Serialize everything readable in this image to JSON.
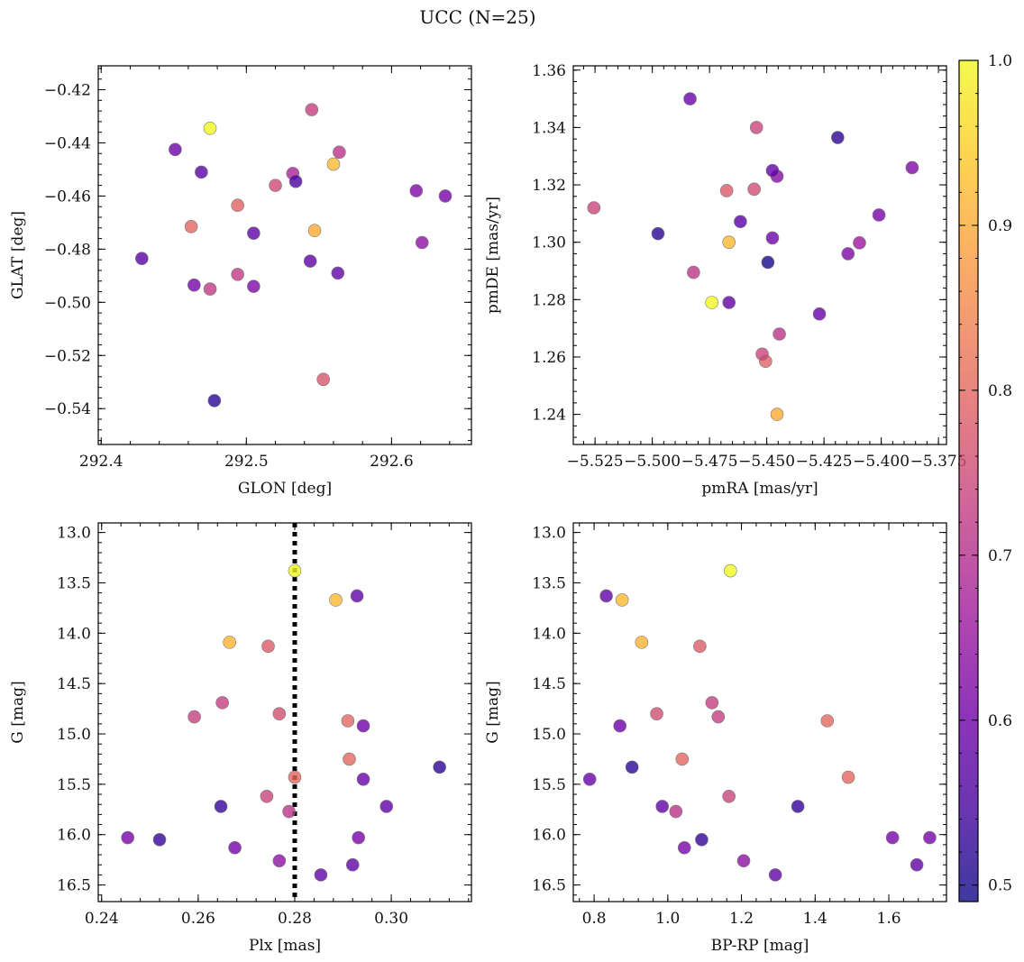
{
  "title": "UCC (N=25)",
  "colorbar": {
    "cmap": [
      "#0d0887",
      "#46039f",
      "#7201a8",
      "#9c179e",
      "#bd3786",
      "#d8576b",
      "#ed7953",
      "#fb9f3a",
      "#fdca26",
      "#f0f921"
    ],
    "vmin": 0.49,
    "vmax": 1.0,
    "ticks": [
      0.5,
      0.6,
      0.7,
      0.8,
      0.9,
      1.0
    ],
    "tick_labels": [
      "0.5",
      "0.6",
      "0.7",
      "0.8",
      "0.9",
      "1.0"
    ],
    "alpha": 0.8
  },
  "chart_data": [
    {
      "id": "glon-glat",
      "type": "scatter",
      "xlabel": "GLON [deg]",
      "ylabel": "GLAT [deg]",
      "xlim": [
        292.398,
        292.655
      ],
      "ylim": [
        -0.5535,
        -0.411
      ],
      "y_inverted": false,
      "xticks": [
        292.4,
        292.5,
        292.6
      ],
      "xtick_labels": [
        "292.4",
        "292.5",
        "292.6"
      ],
      "yticks": [
        -0.42,
        -0.44,
        -0.46,
        -0.48,
        -0.5,
        -0.52,
        -0.54
      ],
      "ytick_labels": [
        "−0.42",
        "−0.44",
        "−0.46",
        "−0.48",
        "−0.50",
        "−0.52",
        "−0.54"
      ],
      "points": [
        {
          "x": 292.475,
          "y": -0.4345,
          "c": 1.0
        },
        {
          "x": 292.56,
          "y": -0.448,
          "c": 0.92
        },
        {
          "x": 292.462,
          "y": -0.4715,
          "c": 0.8
        },
        {
          "x": 292.494,
          "y": -0.4635,
          "c": 0.79
        },
        {
          "x": 292.547,
          "y": -0.473,
          "c": 0.9
        },
        {
          "x": 292.553,
          "y": -0.529,
          "c": 0.77
        },
        {
          "x": 292.545,
          "y": -0.4275,
          "c": 0.73
        },
        {
          "x": 292.564,
          "y": -0.4435,
          "c": 0.71
        },
        {
          "x": 292.52,
          "y": -0.456,
          "c": 0.75
        },
        {
          "x": 292.532,
          "y": -0.4515,
          "c": 0.68
        },
        {
          "x": 292.494,
          "y": -0.4895,
          "c": 0.72
        },
        {
          "x": 292.475,
          "y": -0.495,
          "c": 0.72
        },
        {
          "x": 292.451,
          "y": -0.4425,
          "c": 0.6
        },
        {
          "x": 292.469,
          "y": -0.451,
          "c": 0.57
        },
        {
          "x": 292.534,
          "y": -0.4545,
          "c": 0.55
        },
        {
          "x": 292.505,
          "y": -0.474,
          "c": 0.58
        },
        {
          "x": 292.544,
          "y": -0.4845,
          "c": 0.58
        },
        {
          "x": 292.563,
          "y": -0.489,
          "c": 0.58
        },
        {
          "x": 292.505,
          "y": -0.494,
          "c": 0.62
        },
        {
          "x": 292.464,
          "y": -0.4935,
          "c": 0.61
        },
        {
          "x": 292.428,
          "y": -0.4835,
          "c": 0.57
        },
        {
          "x": 292.478,
          "y": -0.537,
          "c": 0.52
        },
        {
          "x": 292.617,
          "y": -0.458,
          "c": 0.62
        },
        {
          "x": 292.637,
          "y": -0.46,
          "c": 0.61
        },
        {
          "x": 292.621,
          "y": -0.4775,
          "c": 0.64
        }
      ]
    },
    {
      "id": "pmra-pmde",
      "type": "scatter",
      "xlabel": "pmRA [mas/yr]",
      "ylabel": "pmDE [mas/yr]",
      "xlim": [
        -5.5345,
        -5.3715
      ],
      "ylim": [
        1.2295,
        1.3615
      ],
      "y_inverted": false,
      "xticks": [
        -5.525,
        -5.5,
        -5.475,
        -5.45,
        -5.425,
        -5.4,
        -5.375
      ],
      "xtick_labels": [
        "−5.525",
        "−5.500",
        "−5.475",
        "−5.450",
        "−5.425",
        "−5.400",
        "−5.375"
      ],
      "yticks": [
        1.24,
        1.26,
        1.28,
        1.3,
        1.32,
        1.34,
        1.36
      ],
      "ytick_labels": [
        "1.24",
        "1.26",
        "1.28",
        "1.30",
        "1.32",
        "1.34",
        "1.36"
      ],
      "points": [
        {
          "x": -5.474,
          "y": 1.279,
          "c": 1.0
        },
        {
          "x": -5.4665,
          "y": 1.3,
          "c": 0.92
        },
        {
          "x": -5.4455,
          "y": 1.24,
          "c": 0.9
        },
        {
          "x": -5.4505,
          "y": 1.2585,
          "c": 0.79
        },
        {
          "x": -5.4675,
          "y": 1.318,
          "c": 0.78
        },
        {
          "x": -5.4555,
          "y": 1.3185,
          "c": 0.76
        },
        {
          "x": -5.5255,
          "y": 1.312,
          "c": 0.74
        },
        {
          "x": -5.4545,
          "y": 1.34,
          "c": 0.74
        },
        {
          "x": -5.482,
          "y": 1.2895,
          "c": 0.71
        },
        {
          "x": -5.452,
          "y": 1.261,
          "c": 0.74
        },
        {
          "x": -5.4445,
          "y": 1.268,
          "c": 0.71
        },
        {
          "x": -5.4095,
          "y": 1.2998,
          "c": 0.66
        },
        {
          "x": -5.4455,
          "y": 1.323,
          "c": 0.63
        },
        {
          "x": -5.4835,
          "y": 1.35,
          "c": 0.59
        },
        {
          "x": -5.4615,
          "y": 1.3072,
          "c": 0.57
        },
        {
          "x": -5.4475,
          "y": 1.325,
          "c": 0.58
        },
        {
          "x": -5.4475,
          "y": 1.3015,
          "c": 0.6
        },
        {
          "x": -5.4665,
          "y": 1.279,
          "c": 0.58
        },
        {
          "x": -5.4145,
          "y": 1.296,
          "c": 0.62
        },
        {
          "x": -5.401,
          "y": 1.3095,
          "c": 0.61
        },
        {
          "x": -5.427,
          "y": 1.275,
          "c": 0.59
        },
        {
          "x": -5.3865,
          "y": 1.326,
          "c": 0.62
        },
        {
          "x": -5.4975,
          "y": 1.303,
          "c": 0.52
        },
        {
          "x": -5.4495,
          "y": 1.293,
          "c": 0.5
        },
        {
          "x": -5.419,
          "y": 1.3365,
          "c": 0.52
        }
      ]
    },
    {
      "id": "plx-g",
      "type": "scatter",
      "xlabel": "Plx [mas]",
      "ylabel": "G [mag]",
      "xlim": [
        0.2393,
        0.3166
      ],
      "ylim": [
        12.905,
        16.665
      ],
      "y_inverted": true,
      "vline": {
        "x": 0.28,
        "style": "dotted",
        "color": "#000000"
      },
      "xticks": [
        0.24,
        0.26,
        0.28,
        0.3
      ],
      "xtick_labels": [
        "0.24",
        "0.26",
        "0.28",
        "0.30"
      ],
      "yticks": [
        13.0,
        13.5,
        14.0,
        14.5,
        15.0,
        15.5,
        16.0,
        16.5
      ],
      "ytick_labels": [
        "13.0",
        "13.5",
        "14.0",
        "14.5",
        "15.0",
        "15.5",
        "16.0",
        "16.5"
      ],
      "points": [
        {
          "x": 0.28,
          "y": 13.38,
          "c": 1.0
        },
        {
          "x": 0.2885,
          "y": 13.67,
          "c": 0.92
        },
        {
          "x": 0.2665,
          "y": 14.09,
          "c": 0.91
        },
        {
          "x": 0.2745,
          "y": 14.13,
          "c": 0.78
        },
        {
          "x": 0.265,
          "y": 14.69,
          "c": 0.73
        },
        {
          "x": 0.2592,
          "y": 14.83,
          "c": 0.73
        },
        {
          "x": 0.2768,
          "y": 14.8,
          "c": 0.76
        },
        {
          "x": 0.291,
          "y": 14.87,
          "c": 0.8
        },
        {
          "x": 0.2913,
          "y": 15.25,
          "c": 0.8
        },
        {
          "x": 0.28,
          "y": 15.43,
          "c": 0.8
        },
        {
          "x": 0.2742,
          "y": 15.62,
          "c": 0.74
        },
        {
          "x": 0.2788,
          "y": 15.77,
          "c": 0.71
        },
        {
          "x": 0.2929,
          "y": 13.63,
          "c": 0.58
        },
        {
          "x": 0.2942,
          "y": 14.92,
          "c": 0.6
        },
        {
          "x": 0.2942,
          "y": 15.45,
          "c": 0.59
        },
        {
          "x": 0.31,
          "y": 15.33,
          "c": 0.52
        },
        {
          "x": 0.299,
          "y": 15.72,
          "c": 0.58
        },
        {
          "x": 0.2647,
          "y": 15.72,
          "c": 0.53
        },
        {
          "x": 0.2454,
          "y": 16.03,
          "c": 0.61
        },
        {
          "x": 0.252,
          "y": 16.05,
          "c": 0.53
        },
        {
          "x": 0.2676,
          "y": 16.13,
          "c": 0.61
        },
        {
          "x": 0.2768,
          "y": 16.26,
          "c": 0.64
        },
        {
          "x": 0.2932,
          "y": 16.03,
          "c": 0.61
        },
        {
          "x": 0.292,
          "y": 16.3,
          "c": 0.58
        },
        {
          "x": 0.2854,
          "y": 16.4,
          "c": 0.58
        }
      ]
    },
    {
      "id": "bprp-g",
      "type": "scatter",
      "xlabel": "BP-RP [mag]",
      "ylabel": "G [mag]",
      "xlim": [
        0.7435,
        1.7565
      ],
      "ylim": [
        12.905,
        16.665
      ],
      "y_inverted": true,
      "xticks": [
        0.8,
        1.0,
        1.2,
        1.4,
        1.6
      ],
      "xtick_labels": [
        "0.8",
        "1.0",
        "1.2",
        "1.4",
        "1.6"
      ],
      "yticks": [
        13.0,
        13.5,
        14.0,
        14.5,
        15.0,
        15.5,
        16.0,
        16.5
      ],
      "ytick_labels": [
        "13.0",
        "13.5",
        "14.0",
        "14.5",
        "15.0",
        "15.5",
        "16.0",
        "16.5"
      ],
      "points": [
        {
          "x": 1.17,
          "y": 13.38,
          "c": 1.0
        },
        {
          "x": 0.876,
          "y": 13.67,
          "c": 0.92
        },
        {
          "x": 0.929,
          "y": 14.09,
          "c": 0.91
        },
        {
          "x": 1.087,
          "y": 14.13,
          "c": 0.78
        },
        {
          "x": 1.12,
          "y": 14.69,
          "c": 0.73
        },
        {
          "x": 1.137,
          "y": 14.83,
          "c": 0.73
        },
        {
          "x": 0.97,
          "y": 14.8,
          "c": 0.76
        },
        {
          "x": 1.433,
          "y": 14.87,
          "c": 0.8
        },
        {
          "x": 1.039,
          "y": 15.25,
          "c": 0.8
        },
        {
          "x": 1.49,
          "y": 15.43,
          "c": 0.8
        },
        {
          "x": 1.166,
          "y": 15.62,
          "c": 0.74
        },
        {
          "x": 1.022,
          "y": 15.77,
          "c": 0.71
        },
        {
          "x": 0.833,
          "y": 13.63,
          "c": 0.58
        },
        {
          "x": 0.87,
          "y": 14.92,
          "c": 0.6
        },
        {
          "x": 0.788,
          "y": 15.45,
          "c": 0.59
        },
        {
          "x": 0.903,
          "y": 15.33,
          "c": 0.52
        },
        {
          "x": 0.985,
          "y": 15.72,
          "c": 0.58
        },
        {
          "x": 1.353,
          "y": 15.72,
          "c": 0.53
        },
        {
          "x": 1.61,
          "y": 16.03,
          "c": 0.61
        },
        {
          "x": 1.092,
          "y": 16.05,
          "c": 0.53
        },
        {
          "x": 1.045,
          "y": 16.13,
          "c": 0.61
        },
        {
          "x": 1.206,
          "y": 16.26,
          "c": 0.64
        },
        {
          "x": 1.711,
          "y": 16.03,
          "c": 0.61
        },
        {
          "x": 1.676,
          "y": 16.3,
          "c": 0.58
        },
        {
          "x": 1.292,
          "y": 16.4,
          "c": 0.58
        }
      ]
    }
  ]
}
